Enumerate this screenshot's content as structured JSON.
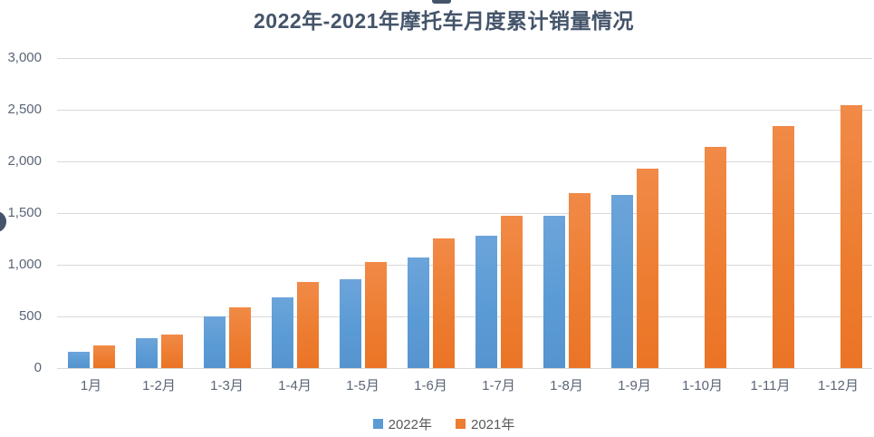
{
  "title": "2022年-2021年摩托车月度累计销量情况",
  "colors": {
    "title": "#44546A",
    "axis_labels": "#5B6576",
    "gridline": "#D9D9D9",
    "series_2022": "#5B9BD5",
    "series_2021": "#ED7D31"
  },
  "chart_data": {
    "type": "bar",
    "title": "2022年-2021年摩托车月度累计销量情况",
    "categories": [
      "1月",
      "1-2月",
      "1-3月",
      "1-4月",
      "1-5月",
      "1-6月",
      "1-7月",
      "1-8月",
      "1-9月",
      "1-10月",
      "1-11月",
      "1-12月"
    ],
    "series": [
      {
        "name": "2022年",
        "color": "#5B9BD5",
        "values": [
          155,
          290,
          500,
          680,
          860,
          1070,
          1285,
          1470,
          1675,
          null,
          null,
          null
        ]
      },
      {
        "name": "2021年",
        "color": "#ED7D31",
        "values": [
          215,
          325,
          585,
          830,
          1025,
          1255,
          1470,
          1690,
          1930,
          2140,
          2340,
          2545
        ]
      }
    ],
    "xlabel": "",
    "ylabel": "",
    "ylim": [
      0,
      3000
    ],
    "ytick_interval": 500,
    "yticks": [
      "3,000",
      "2,500",
      "2,000",
      "1,500",
      "1,000",
      "500",
      "0"
    ],
    "grid": true,
    "legend_position": "bottom"
  }
}
